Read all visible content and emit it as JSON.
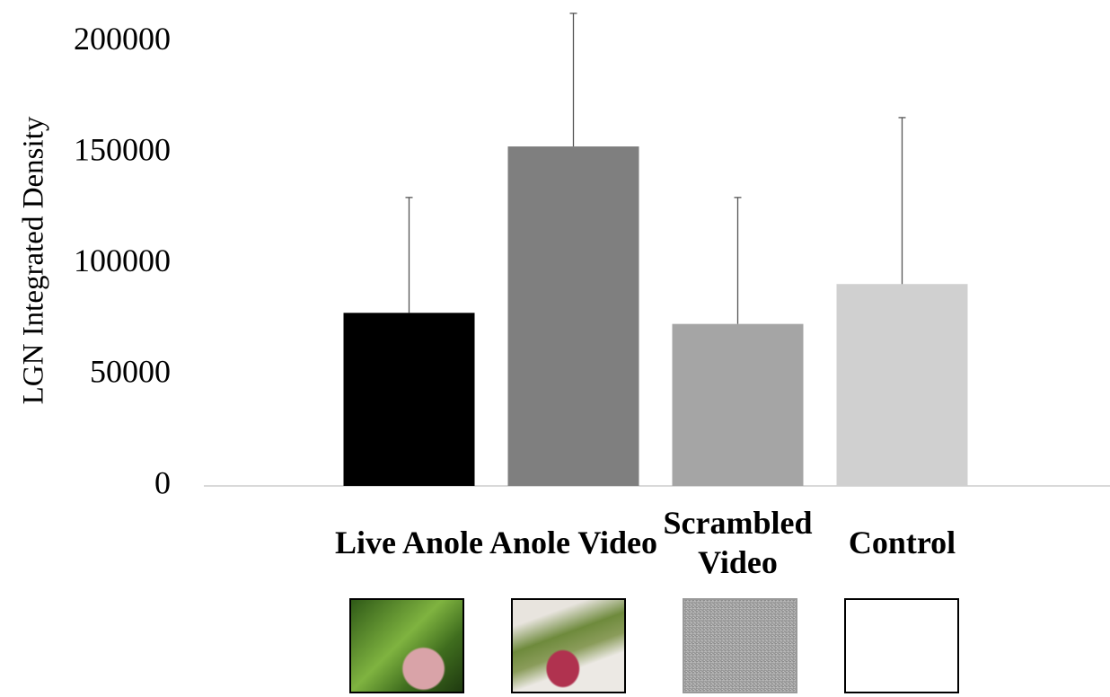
{
  "chart_data": {
    "type": "bar",
    "y_label": "LGN Integrated Density",
    "categories": [
      "Live Anole",
      "Anole Video",
      "Scrambled Video",
      "Control"
    ],
    "values": [
      78000,
      153000,
      73000,
      91000
    ],
    "errors": [
      52000,
      60000,
      57000,
      75000
    ],
    "colors": [
      "#000000",
      "#7f7f7f",
      "#a5a5a5",
      "#d0d0d0"
    ],
    "ylim": [
      0,
      219000
    ],
    "yticks": [
      0,
      50000,
      100000,
      150000,
      200000
    ],
    "grid": false
  }
}
